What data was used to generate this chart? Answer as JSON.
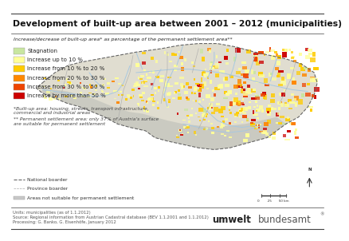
{
  "title": "Development of built-up area between 2001 – 2012 (municipalities)",
  "subtitle": "Increase/decrease of built-up area* as percentage of the permanent settlement area**",
  "legend_items": [
    {
      "label": "Stagnation",
      "color": "#c8e6a0"
    },
    {
      "label": "Increase up to 10 %",
      "color": "#ffff99"
    },
    {
      "label": "Increase from 10 % to 20 %",
      "color": "#ffcc00"
    },
    {
      "label": "Increase from 20 % to 30 %",
      "color": "#ff8800"
    },
    {
      "label": "Increase from 30 % to 50 %",
      "color": "#ee4400"
    },
    {
      "label": "Increase by more than 50 %",
      "color": "#cc0000"
    }
  ],
  "footnote1": "*Built-up area: housing, streets, transport infrastructure,\ncommercial and industrial areas",
  "footnote2": "** Permanent settlement area: only 37% of Austria’s surface\nare suitable for permanent settlement",
  "border_items": [
    {
      "label": "National boarder",
      "linestyle": "--",
      "color": "#777777"
    },
    {
      "label": "Province boarder",
      "linestyle": "--",
      "color": "#aaaaaa"
    },
    {
      "label": "Areas not suitable for permanent settlement",
      "color": "#c8c8c8"
    }
  ],
  "data_source": "Units: municipalities (as of 1.1.2012)\nSource: Regional information from Austrian Cadastral database (BEV 1.1.2001 and 1.1.2012)\nProcessing: G. Banko, G. Eisenhöfe, January 2012",
  "bg_color": "#ffffff",
  "outer_border_color": "#555555",
  "title_fontsize": 7.8,
  "subtitle_fontsize": 4.5,
  "legend_fontsize": 5.0,
  "footnote_fontsize": 4.3,
  "source_fontsize": 3.8,
  "logo_umwelt_size": 8.5,
  "logo_bundesamt_size": 8.5,
  "map_bg_color": "#dce9f5",
  "austria_fill": "#e0ddd0",
  "mountain_fill": "#c8c8c0",
  "river_color": "#a8c8e0",
  "settlement_colors": [
    "#ffff99",
    "#ffff99",
    "#ffff99",
    "#ffcc00",
    "#ffcc00",
    "#ff8800",
    "#ee4400",
    "#cc0000",
    "#c8e6a0",
    "#ffff99"
  ],
  "seed": 123
}
